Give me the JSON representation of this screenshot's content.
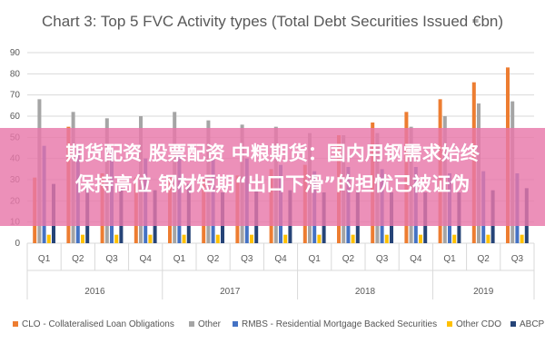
{
  "banner": {
    "line1": "期货配资 股票配资 中粮期货：国内用钢需求始终",
    "line2": "保持高位 钢材短期“出口下滑”的担忧已被证伪"
  },
  "chart_data": {
    "type": "bar",
    "title": "Chart 3: Top 5 FVC Activity types (Total Debt Securities Issued €bn)",
    "xlabel": "",
    "ylabel": "",
    "ylim": [
      0,
      90
    ],
    "yticks": [
      0,
      10,
      20,
      30,
      40,
      50,
      60,
      70,
      80,
      90
    ],
    "grid": true,
    "legend_position": "bottom",
    "categories": [
      "Q1",
      "Q2",
      "Q3",
      "Q4",
      "Q1",
      "Q2",
      "Q3",
      "Q4",
      "Q1",
      "Q2",
      "Q3",
      "Q4",
      "Q1",
      "Q2",
      "Q3"
    ],
    "years": [
      {
        "label": "2016",
        "span": 4
      },
      {
        "label": "2017",
        "span": 4
      },
      {
        "label": "2018",
        "span": 4
      },
      {
        "label": "2019",
        "span": 3
      }
    ],
    "series": [
      {
        "name": "CLO - Collateralised Loan Obligations",
        "color": "#ed7d31",
        "values": [
          31,
          55,
          33,
          31,
          31,
          30,
          32,
          35,
          37,
          51,
          57,
          62,
          68,
          76,
          83
        ]
      },
      {
        "name": "Other",
        "color": "#a5a5a5",
        "values": [
          68,
          62,
          59,
          60,
          62,
          58,
          56,
          55,
          52,
          51,
          52,
          55,
          60,
          66,
          67
        ]
      },
      {
        "name": "RMBS - Residential Mortgage Backed Securities",
        "color": "#4472c4",
        "values": [
          46,
          45,
          44,
          40,
          42,
          40,
          40,
          37,
          34,
          36,
          35,
          36,
          33,
          34,
          33
        ]
      },
      {
        "name": "Other CDO",
        "color": "#ffc000",
        "values": [
          4,
          4,
          4,
          4,
          4,
          4,
          4,
          4,
          4,
          4,
          4,
          4,
          4,
          4,
          4
        ]
      },
      {
        "name": "ABCP",
        "color": "#264478",
        "values": [
          28,
          28,
          26,
          25,
          28,
          24,
          25,
          25,
          24,
          24,
          24,
          24,
          24,
          25,
          26
        ]
      }
    ]
  }
}
